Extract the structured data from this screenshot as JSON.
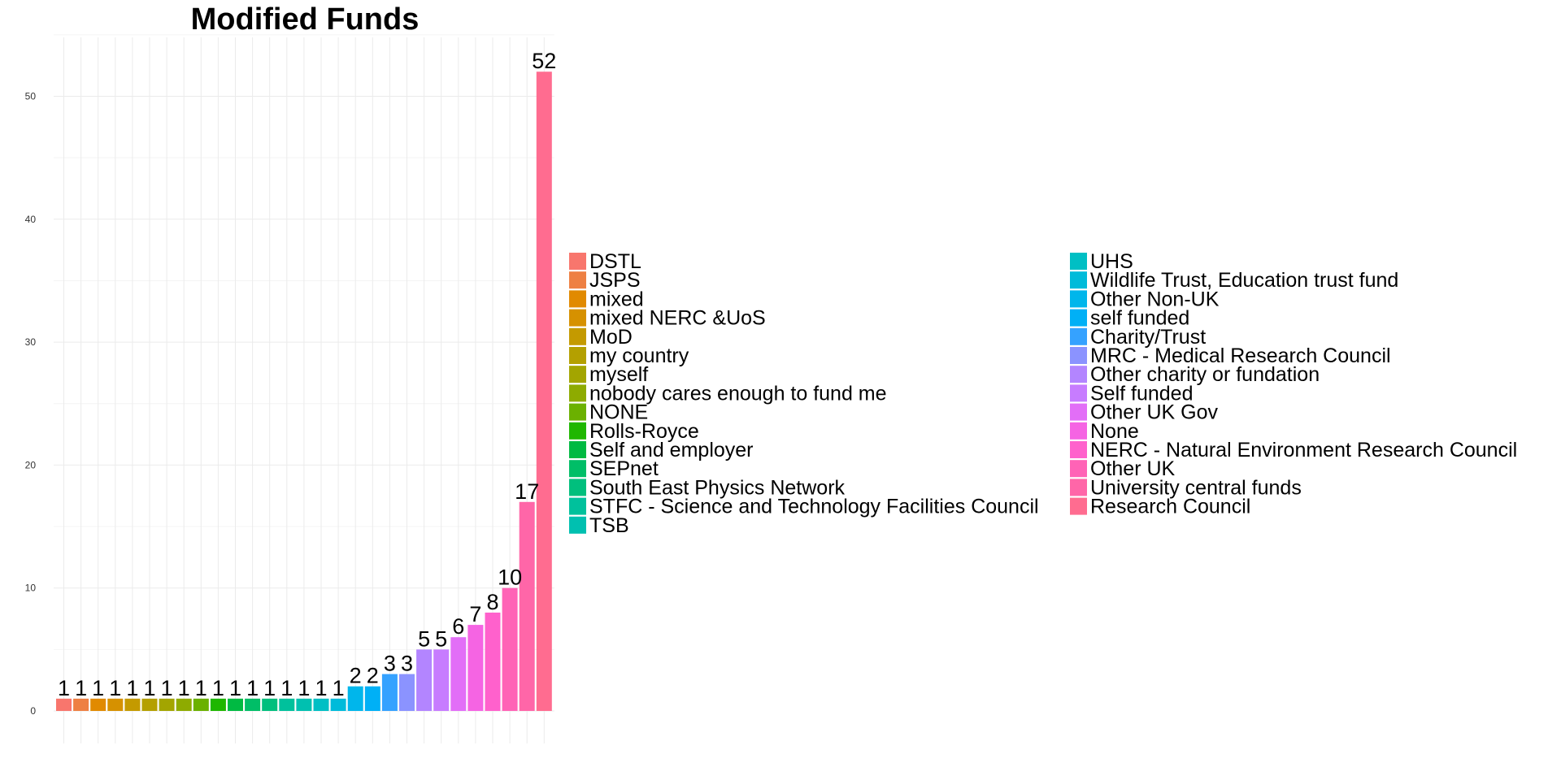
{
  "chart_data": {
    "type": "bar",
    "title": "Modified Funds",
    "xlabel": "",
    "ylabel": "",
    "ylim": [
      0,
      55
    ],
    "y_ticks": [
      0,
      10,
      20,
      30,
      40,
      50
    ],
    "grid": true,
    "legend_position": "right",
    "legend_columns": 2,
    "categories": [
      "DSTL",
      "JSPS",
      "mixed",
      "mixed NERC &UoS",
      "MoD",
      "my country",
      "myself",
      "nobody cares enough to fund me",
      "NONE",
      "Rolls-Royce",
      "Self and employer",
      "SEPnet",
      "South East Physics Network",
      "STFC - Science and Technology Facilities Council",
      "TSB",
      "UHS",
      "Wildlife Trust, Education trust fund",
      "Other Non-UK",
      "self funded",
      "Charity/Trust",
      "MRC - Medical Research Council",
      "Other charity or fundation",
      "Self funded",
      "Other UK Gov",
      "None",
      "NERC - Natural Environment Research Council",
      "Other UK",
      "University central funds",
      "Research Council"
    ],
    "values": [
      1,
      1,
      1,
      1,
      1,
      1,
      1,
      1,
      1,
      1,
      1,
      1,
      1,
      1,
      1,
      1,
      1,
      2,
      2,
      3,
      3,
      5,
      5,
      6,
      7,
      8,
      10,
      17,
      52
    ],
    "colors": [
      "#F8766D",
      "#EE8043",
      "#E18A00",
      "#D69100",
      "#C49A00",
      "#B4A000",
      "#A3A500",
      "#8EAB00",
      "#6BB100",
      "#1FB700",
      "#00BA42",
      "#00BE67",
      "#00BF7D",
      "#00C19C",
      "#00C0B0",
      "#00BFC4",
      "#00BBDA",
      "#00B6EB",
      "#00B0F6",
      "#35A2FF",
      "#8B93FF",
      "#B385FF",
      "#C77CFF",
      "#E26EF7",
      "#F564E3",
      "#FF61CC",
      "#FF63B6",
      "#FF66A8",
      "#FF6C90"
    ]
  }
}
